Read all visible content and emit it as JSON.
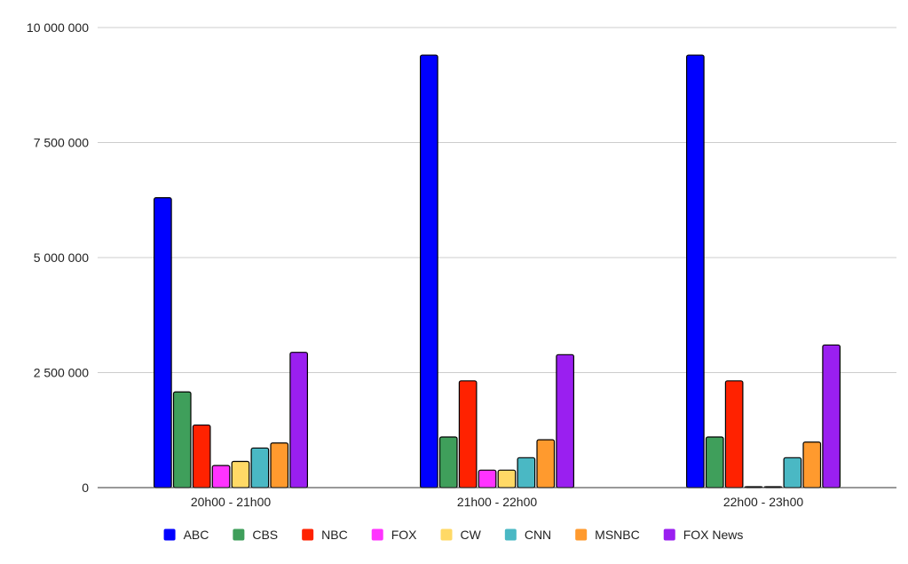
{
  "chart_data": {
    "type": "bar",
    "title": "",
    "xlabel": "",
    "ylabel": "",
    "categories": [
      "20h00 - 21h00",
      "21h00 - 22h00",
      "22h00 - 23h00"
    ],
    "ylim": [
      0,
      10000000
    ],
    "yticks": [
      0,
      2500000,
      5000000,
      7500000,
      10000000
    ],
    "ytick_labels": [
      "0",
      "2 500 000",
      "5 000 000",
      "7 500 000",
      "10 000 000"
    ],
    "grid": true,
    "legend_position": "bottom",
    "series": [
      {
        "name": "ABC",
        "color": "#0000ff",
        "values": [
          6300000,
          9400000,
          9400000
        ]
      },
      {
        "name": "CBS",
        "color": "#3f9f5b",
        "values": [
          2080000,
          1100000,
          1100000
        ]
      },
      {
        "name": "NBC",
        "color": "#ff2200",
        "values": [
          1360000,
          2320000,
          2320000
        ]
      },
      {
        "name": "FOX",
        "color": "#ff33ff",
        "values": [
          480000,
          380000,
          20000
        ]
      },
      {
        "name": "CW",
        "color": "#ffd966",
        "values": [
          570000,
          380000,
          20000
        ]
      },
      {
        "name": "CNN",
        "color": "#4ab8c4",
        "values": [
          860000,
          650000,
          650000
        ]
      },
      {
        "name": "MSNBC",
        "color": "#ff9a2e",
        "values": [
          970000,
          1040000,
          990000
        ]
      },
      {
        "name": "FOX News",
        "color": "#9a1ff0",
        "values": [
          2940000,
          2890000,
          3100000
        ]
      }
    ]
  }
}
